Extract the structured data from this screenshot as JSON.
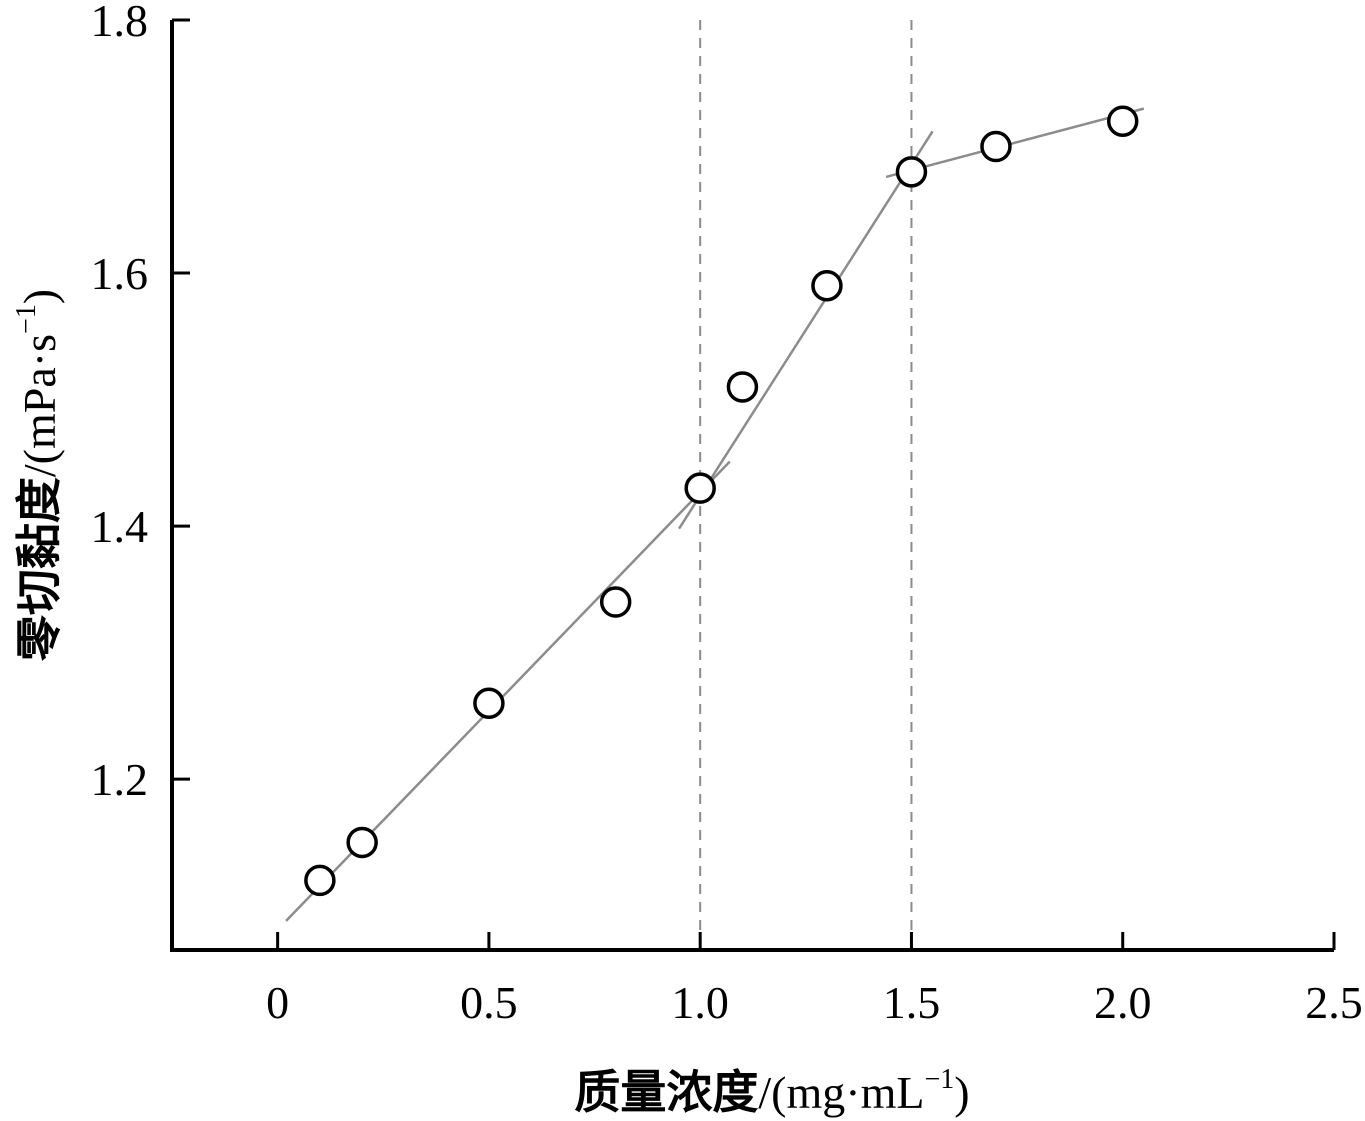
{
  "chart_data": {
    "type": "scatter",
    "xlabel": "质量浓度",
    "xlabel_unit": "/(mg·mL",
    "xlabel_unit_sup": "−1",
    "xlabel_unit_end": ")",
    "ylabel": "零切黏度",
    "ylabel_unit": "/(mPa·s",
    "ylabel_unit_sup": "−1",
    "ylabel_unit_end": ")",
    "xlim": [
      -0.25,
      2.5
    ],
    "ylim": [
      1.065,
      1.8
    ],
    "x_ticks": [
      0,
      0.5,
      1.0,
      1.5,
      2.0,
      2.5
    ],
    "x_tick_labels": [
      "0",
      "0.5",
      "1.0",
      "1.5",
      "2.0",
      "2.5"
    ],
    "y_ticks": [
      1.2,
      1.4,
      1.6,
      1.8
    ],
    "y_tick_labels": [
      "1.2",
      "1.4",
      "1.6",
      "1.8"
    ],
    "grid": false,
    "points": [
      {
        "x": 0.1,
        "y": 1.12
      },
      {
        "x": 0.2,
        "y": 1.15
      },
      {
        "x": 0.5,
        "y": 1.26
      },
      {
        "x": 0.8,
        "y": 1.34
      },
      {
        "x": 1.0,
        "y": 1.43
      },
      {
        "x": 1.1,
        "y": 1.51
      },
      {
        "x": 1.3,
        "y": 1.59
      },
      {
        "x": 1.5,
        "y": 1.68
      },
      {
        "x": 1.7,
        "y": 1.7
      },
      {
        "x": 2.0,
        "y": 1.72
      }
    ],
    "fit_lines": [
      {
        "x": [
          0.02,
          1.07
        ],
        "y": [
          1.088,
          1.451
        ]
      },
      {
        "x": [
          0.95,
          1.55
        ],
        "y": [
          1.398,
          1.712
        ]
      },
      {
        "x": [
          1.44,
          2.05
        ],
        "y": [
          1.676,
          1.73
        ]
      }
    ],
    "reference_lines_x": [
      1.0,
      1.5
    ],
    "colors": {
      "axis": "#000000",
      "marker": "#000000",
      "fit_line": "#8c8c8c",
      "reference_line": "#8c8c8c"
    }
  }
}
